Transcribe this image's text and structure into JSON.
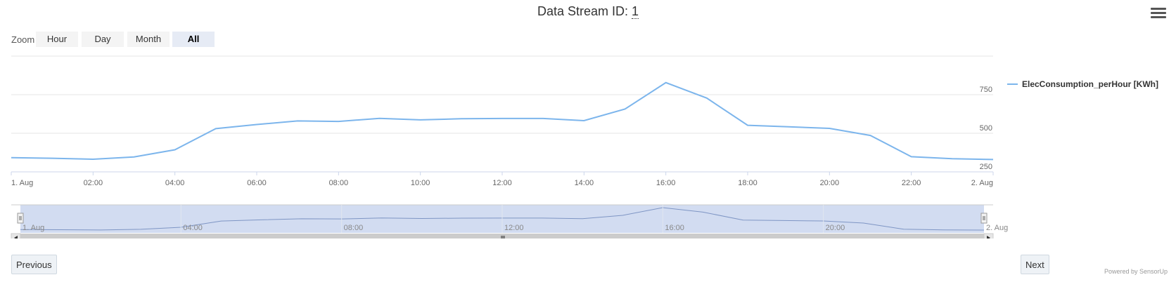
{
  "header": {
    "title_prefix": "Data Stream ID: ",
    "title_id": "1"
  },
  "zoom": {
    "label": "Zoom",
    "buttons": [
      "Hour",
      "Day",
      "Month",
      "All"
    ],
    "active": "All"
  },
  "navigation": {
    "previous": "Previous",
    "next": "Next"
  },
  "footer": {
    "powered_by": "Powered by SensorUp"
  },
  "colors": {
    "series": "#7cb5ec",
    "navigator_fill": "#cdd8ef",
    "active_zoom": "#e6ebf5"
  },
  "icons": {
    "menu": "hamburger-menu-icon"
  },
  "chart_data": {
    "type": "line",
    "xlabel": "",
    "ylabel": "",
    "x_tick_labels": [
      "1. Aug",
      "02:00",
      "04:00",
      "06:00",
      "08:00",
      "10:00",
      "12:00",
      "14:00",
      "16:00",
      "18:00",
      "20:00",
      "22:00",
      "2. Aug"
    ],
    "y_tick_labels": [
      "250",
      "500",
      "750"
    ],
    "ylim": [
      250,
      1000
    ],
    "grid": true,
    "legend_position": "right",
    "series": [
      {
        "name": "ElecConsumption_perHour [KWh]",
        "x": [
          "1. Aug 00:00",
          "01:00",
          "02:00",
          "03:00",
          "04:00",
          "05:00",
          "06:00",
          "07:00",
          "08:00",
          "09:00",
          "10:00",
          "11:00",
          "12:00",
          "13:00",
          "14:00",
          "15:00",
          "16:00",
          "17:00",
          "18:00",
          "19:00",
          "20:00",
          "21:00",
          "22:00",
          "23:00",
          "2. Aug 00:00"
        ],
        "values": [
          342,
          338,
          332,
          347,
          393,
          530,
          557,
          580,
          577,
          597,
          587,
          594,
          596,
          596,
          582,
          657,
          828,
          728,
          552,
          542,
          532,
          486,
          348,
          335,
          330
        ]
      }
    ],
    "navigator": {
      "x_tick_labels": [
        "1. Aug",
        "04:00",
        "08:00",
        "12:00",
        "16:00",
        "20:00",
        "2. Aug"
      ]
    }
  }
}
